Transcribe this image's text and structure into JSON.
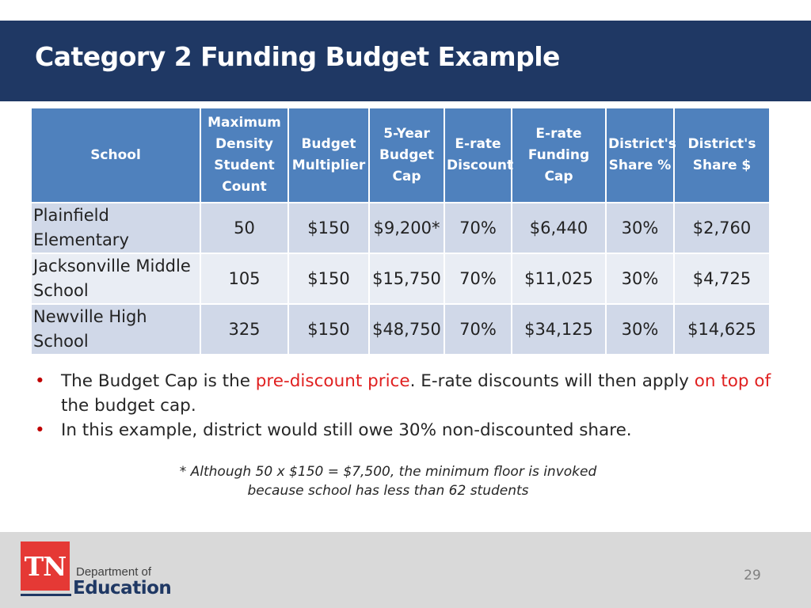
{
  "title": "Category 2 Funding Budget Example",
  "table": {
    "headers": [
      "School",
      "Maximum\nDensity\nStudent\nCount",
      "Budget\nMultiplier",
      "5-Year\nBudget\nCap",
      "E-rate\nDiscount",
      "E-rate\nFunding Cap",
      "District's\nShare %",
      "District's\nShare $"
    ],
    "rows": [
      [
        "Plainfield\nElementary",
        "50",
        "$150",
        "$9,200*",
        "70%",
        "$6,440",
        "30%",
        "$2,760"
      ],
      [
        "Jacksonville Middle\nSchool",
        "105",
        "$150",
        "$15,750",
        "70%",
        "$11,025",
        "30%",
        "$4,725"
      ],
      [
        "Newville High\nSchool",
        "325",
        "$150",
        "$48,750",
        "70%",
        "$34,125",
        "30%",
        "$14,625"
      ]
    ]
  },
  "bullets": {
    "b1": {
      "part1": "The Budget Cap is the ",
      "highlight1": "pre-discount price",
      "part2": ".  E-rate discounts will then apply ",
      "highlight2": "on top of",
      "part3": " the budget cap."
    },
    "b2": "In this example, district would still owe 30% non-discounted share."
  },
  "bullet_marker": "•",
  "footnote": {
    "line1": "* Although 50 x $150 = $7,500, the minimum floor is invoked",
    "line2": "because school has less than 62 students"
  },
  "footer": {
    "logo_mark": "TN",
    "logo_line1": "Department of",
    "logo_line2": "Education",
    "page_number": "29"
  },
  "colors": {
    "title_bar": "#1f3864",
    "header_row": "#4f81bd",
    "row_dark": "#d0d8e8",
    "row_light": "#e9edf4",
    "highlight": "#e02020",
    "logo_red": "#e53935"
  }
}
